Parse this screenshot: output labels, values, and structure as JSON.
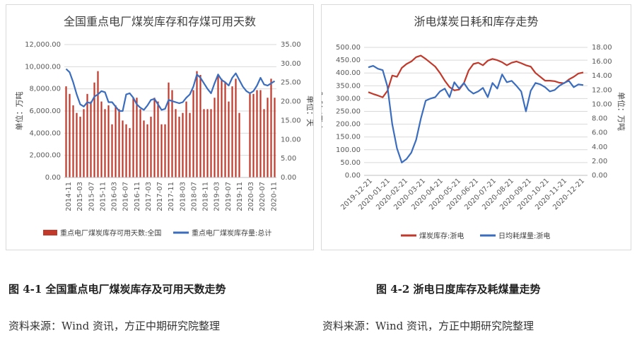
{
  "figures": [
    {
      "caption": "图 4-1  全国重点电厂煤炭库存及可用天数走势",
      "source": "资料来源：Wind 资讯，方正中期研究院整理"
    },
    {
      "caption": "图 4-2  浙电日度库存及耗煤量走势",
      "source": "资料来源：Wind 资讯，方正中期研究院整理"
    }
  ],
  "chart_data": [
    {
      "type": "bar+line",
      "title": "全国重点电厂煤炭库存和存煤可用天数",
      "ylabel_left": "单位：万吨",
      "ylabel_right": "单位：天",
      "ylim_left": [
        0,
        12000
      ],
      "ylim_right": [
        0,
        35
      ],
      "yticks_left": [
        "0.00",
        "2,000.00",
        "4,000.00",
        "6,000.00",
        "8,000.00",
        "10,000.00",
        "12,000.00"
      ],
      "yticks_right": [
        "0.00",
        "5.00",
        "10.00",
        "15.00",
        "20.00",
        "25.00",
        "30.00",
        "35.00"
      ],
      "xticks": [
        "2014-11",
        "2015-03",
        "2015-07",
        "2015-11",
        "2016-03",
        "2016-07",
        "2016-11",
        "2017-03",
        "2017-07",
        "2017-11",
        "2018-03",
        "2018-07",
        "2018-11",
        "2019-03",
        "2019-07",
        "2019-11",
        "2020-03",
        "2020-07",
        "2020-11"
      ],
      "x_start": "2014-11",
      "series": [
        {
          "name": "重点电厂煤炭库存可用天数:全国",
          "kind": "bar",
          "axis": "right",
          "color": "#c0392b",
          "values": [
            24,
            22,
            19,
            17,
            16,
            18,
            22,
            20,
            25,
            28,
            20,
            18,
            19,
            14,
            19,
            18,
            15,
            14,
            13,
            21,
            21,
            18,
            15,
            14,
            16,
            21,
            20,
            14,
            14,
            25,
            23,
            18,
            16,
            17,
            20,
            17,
            23,
            28,
            27,
            18,
            18,
            18,
            21,
            27,
            26,
            25,
            20,
            24,
            26,
            17,
            0,
            0,
            22,
            22,
            23,
            23,
            18,
            21,
            26,
            21
          ]
        },
        {
          "name": "重点电厂煤炭库存量:总计",
          "kind": "line",
          "axis": "left",
          "color": "#3b6dbf",
          "values": [
            9800,
            9500,
            8600,
            7500,
            6600,
            6400,
            6800,
            6700,
            7300,
            7500,
            7800,
            7700,
            6800,
            6800,
            6400,
            6000,
            6000,
            7500,
            7600,
            7200,
            6600,
            6300,
            6100,
            6500,
            7000,
            7100,
            6600,
            6100,
            6200,
            7000,
            6900,
            6800,
            6700,
            6800,
            7200,
            7500,
            8200,
            9300,
            9000,
            8500,
            8000,
            7600,
            8500,
            9300,
            8800,
            8600,
            8300,
            9000,
            9400,
            8800,
            8200,
            7800,
            7600,
            7800,
            8300,
            9000,
            8400,
            8300,
            8500,
            8700
          ]
        }
      ]
    },
    {
      "type": "line",
      "title": "浙电煤炭日耗和库存走势",
      "ylabel_left": "单位：万吨",
      "ylabel_right": "单位：万吨",
      "ylim_left": [
        0,
        500
      ],
      "ylim_right": [
        0,
        18
      ],
      "yticks_left": [
        "0.00",
        "50.00",
        "100.00",
        "150.00",
        "200.00",
        "250.00",
        "300.00",
        "350.00",
        "400.00",
        "450.00",
        "500.00"
      ],
      "yticks_right": [
        "0.00",
        "2.00",
        "4.00",
        "6.00",
        "8.00",
        "10.00",
        "12.00",
        "14.00",
        "16.00",
        "18.00"
      ],
      "xticks": [
        "2019-12-21",
        "2020-01-21",
        "2020-02-21",
        "2020-03-21",
        "2020-04-21",
        "2020-05-21",
        "2020-06-21",
        "2020-07-21",
        "2020-08-21",
        "2020-09-21",
        "2020-10-21",
        "2020-11-21",
        "2020-12-21"
      ],
      "x_start": "2019-12-21",
      "series": [
        {
          "name": "煤炭库存:浙电",
          "axis": "left",
          "color": "#c0392b",
          "values": [
            325,
            318,
            312,
            305,
            330,
            390,
            385,
            420,
            435,
            445,
            462,
            468,
            455,
            440,
            425,
            400,
            370,
            345,
            332,
            335,
            360,
            410,
            435,
            440,
            430,
            448,
            455,
            450,
            442,
            430,
            440,
            445,
            438,
            430,
            425,
            400,
            385,
            370,
            370,
            368,
            362,
            360,
            375,
            385,
            398,
            402
          ]
        },
        {
          "name": "日均耗煤量:浙电",
          "axis": "right",
          "color": "#3b6dbf",
          "values": [
            15.2,
            15.4,
            15.0,
            14.8,
            12.5,
            7.2,
            3.8,
            1.8,
            2.3,
            3.2,
            5.0,
            8.0,
            10.5,
            10.8,
            11.0,
            11.8,
            12.2,
            11.0,
            13.1,
            12.2,
            13.0,
            12.0,
            11.5,
            11.8,
            12.3,
            11.0,
            13.0,
            12.2,
            14.2,
            13.1,
            13.3,
            12.6,
            11.8,
            9.0,
            11.9,
            13.0,
            12.8,
            12.4,
            11.8,
            12.0,
            12.6,
            13.0,
            13.3,
            12.4,
            12.8,
            12.7
          ]
        }
      ]
    }
  ]
}
